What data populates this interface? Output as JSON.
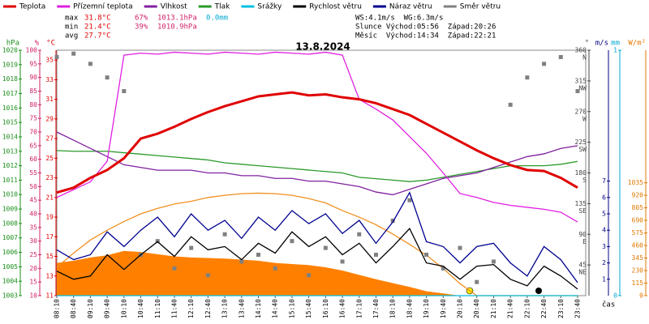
{
  "chart_data": {
    "type": "line",
    "title": "13.8.2024",
    "x": [
      "08:10",
      "08:40",
      "09:10",
      "09:40",
      "10:10",
      "10:40",
      "11:10",
      "11:40",
      "12:10",
      "12:40",
      "13:10",
      "13:40",
      "14:10",
      "14:40",
      "15:10",
      "15:40",
      "16:10",
      "16:40",
      "17:10",
      "17:40",
      "18:10",
      "18:40",
      "19:10",
      "19:40",
      "20:10",
      "20:40",
      "21:10",
      "21:40",
      "22:10",
      "22:40",
      "23:10",
      "23:40"
    ],
    "x_label": "čas",
    "axes": [
      {
        "id": "p",
        "label": "hPa",
        "color": "#1a8f1a",
        "lim": [
          1003,
          1020
        ],
        "ticks": [
          1003,
          1004,
          1005,
          1006,
          1007,
          1008,
          1009,
          1010,
          1011,
          1012,
          1013,
          1014,
          1015,
          1016,
          1017,
          1018,
          1019,
          1020
        ],
        "side": "left"
      },
      {
        "id": "h",
        "label": "%",
        "color": "#d0206a",
        "lim": [
          10,
          100
        ],
        "ticks": [
          10,
          15,
          20,
          25,
          30,
          35,
          40,
          45,
          50,
          55,
          60,
          65,
          70,
          75,
          80,
          85,
          90,
          95,
          100
        ],
        "side": "left"
      },
      {
        "id": "t",
        "label": "°C",
        "color": "#e00000",
        "lim": [
          11,
          36
        ],
        "ticks": [
          11,
          13,
          15,
          17,
          19,
          21,
          23,
          25,
          27,
          29,
          31,
          33,
          35
        ],
        "side": "left"
      },
      {
        "id": "d",
        "label": "°",
        "color": "#444444",
        "lim": [
          0,
          360
        ],
        "ticks": [
          45,
          90,
          135,
          180,
          225,
          270,
          315,
          360
        ],
        "tick_names": [
          "NE",
          "E",
          "SE",
          "S",
          "SW",
          "W",
          "NW",
          "N"
        ],
        "side": "right"
      },
      {
        "id": "w",
        "label": "m/s",
        "color": "#000080",
        "lim": [
          0,
          15
        ],
        "ticks": [
          1,
          2,
          3,
          4,
          5,
          6,
          7
        ],
        "side": "right"
      },
      {
        "id": "r",
        "label": "mm",
        "color": "#00a8d0",
        "lim": [
          0,
          1
        ],
        "ticks": [
          0,
          1
        ],
        "side": "right"
      },
      {
        "id": "s",
        "label": "W/m²",
        "color": "#e07800",
        "lim": [
          0,
          2250
        ],
        "ticks": [
          0,
          115,
          230,
          345,
          460,
          575,
          690,
          805,
          920,
          1035
        ],
        "side": "right"
      }
    ],
    "series": [
      {
        "kind": "area",
        "axis": "s",
        "color": "#ff8000",
        "values": [
          300,
          320,
          350,
          370,
          410,
          400,
          380,
          360,
          350,
          345,
          340,
          330,
          320,
          300,
          290,
          280,
          260,
          230,
          190,
          150,
          115,
          80,
          40,
          20,
          0,
          0,
          0,
          0,
          0,
          0,
          0,
          0
        ]
      },
      {
        "kind": "line",
        "axis": "s",
        "color": "#f09020",
        "values": [
          260,
          390,
          510,
          600,
          680,
          750,
          800,
          840,
          865,
          900,
          920,
          935,
          940,
          935,
          920,
          890,
          850,
          780,
          720,
          650,
          565,
          470,
          370,
          250,
          110,
          0,
          0,
          0,
          0,
          0,
          0,
          0
        ]
      },
      {
        "name": "Směr větru",
        "kind": "points",
        "axis": "d",
        "color": "#808080",
        "values": [
          350,
          355,
          340,
          320,
          300,
          60,
          80,
          40,
          70,
          30,
          90,
          50,
          60,
          40,
          80,
          30,
          70,
          50,
          90,
          60,
          110,
          140,
          60,
          40,
          70,
          20,
          50,
          280,
          320,
          340,
          350,
          300
        ]
      },
      {
        "name": "Srážky",
        "kind": "line",
        "axis": "r",
        "color": "#00c0e0",
        "values": [
          0,
          0,
          0,
          0,
          0,
          0,
          0,
          0,
          0,
          0,
          0,
          0,
          0,
          0,
          0,
          0,
          0,
          0,
          0,
          0,
          0,
          0,
          0,
          0,
          0,
          0,
          0,
          0,
          0,
          0,
          0,
          0
        ]
      },
      {
        "name": "Rychlost větru",
        "kind": "line",
        "axis": "w",
        "color": "#000000",
        "values": [
          1.5,
          1.0,
          1.2,
          2.5,
          1.6,
          2.5,
          3.3,
          2.4,
          3.6,
          2.8,
          3.0,
          2.2,
          3.2,
          2.6,
          3.9,
          3.0,
          3.6,
          2.5,
          3.2,
          2.0,
          3.0,
          4.1,
          2.0,
          1.8,
          1.0,
          1.8,
          1.9,
          1.0,
          0.6,
          1.8,
          1.2,
          0.4
        ]
      },
      {
        "name": "Náraz větru",
        "kind": "line",
        "axis": "w",
        "color": "#000090",
        "values": [
          2.8,
          2.2,
          2.5,
          3.9,
          3.0,
          4.0,
          4.8,
          3.6,
          5.0,
          4.0,
          4.6,
          3.5,
          4.8,
          4.0,
          5.2,
          4.4,
          5.0,
          3.8,
          4.6,
          3.2,
          4.5,
          6.3,
          3.3,
          3.0,
          2.0,
          3.0,
          3.2,
          2.0,
          1.2,
          3.0,
          2.2,
          0.8
        ]
      },
      {
        "name": "Tlak",
        "kind": "line",
        "axis": "p",
        "color": "#2a9a2a",
        "values": [
          1013.05,
          1013.0,
          1013.0,
          1013.0,
          1012.9,
          1012.8,
          1012.7,
          1012.6,
          1012.5,
          1012.4,
          1012.2,
          1012.1,
          1012.0,
          1011.9,
          1011.8,
          1011.7,
          1011.6,
          1011.5,
          1011.2,
          1011.1,
          1011.0,
          1010.9,
          1011.0,
          1011.2,
          1011.4,
          1011.6,
          1011.8,
          1012.0,
          1012.0,
          1012.0,
          1012.1,
          1012.3
        ]
      },
      {
        "name": "Vlhkost",
        "kind": "line",
        "axis": "h",
        "color": "#8020a0",
        "values": [
          70,
          67,
          64,
          61,
          58,
          57,
          56,
          56,
          56,
          55,
          55,
          54,
          54,
          53,
          53,
          52,
          52,
          51,
          50,
          48,
          47,
          49,
          51,
          53,
          54,
          55,
          57,
          59,
          61,
          62,
          64,
          65
        ]
      },
      {
        "name": "Přízemní teplota",
        "kind": "line",
        "axis": "t",
        "color": "#e020e0",
        "values": [
          21,
          21.8,
          22.6,
          24.7,
          35.5,
          35.7,
          35.6,
          35.8,
          35.7,
          35.6,
          35.8,
          35.7,
          35.6,
          35.8,
          35.7,
          35.6,
          35.8,
          35.5,
          31,
          30,
          28.9,
          27.2,
          25.5,
          23.5,
          21.4,
          21,
          20.5,
          20.2,
          20,
          19.8,
          19.5,
          18.5
        ]
      },
      {
        "name": "Teplota",
        "kind": "line",
        "axis": "t",
        "color": "#e00000",
        "width": 3,
        "values": [
          21.5,
          22,
          23,
          23.8,
          25,
          27,
          27.5,
          28.2,
          29,
          29.7,
          30.3,
          30.8,
          31.3,
          31.5,
          31.7,
          31.4,
          31.5,
          31.2,
          31,
          30.6,
          30,
          29.4,
          28.5,
          27.6,
          26.7,
          25.8,
          25,
          24.3,
          23.8,
          23.7,
          23,
          22
        ]
      }
    ],
    "legend_order": [
      9,
      8,
      7,
      6,
      3,
      4,
      5,
      2
    ],
    "stats": [
      {
        "label": "max",
        "t": "31.8°C",
        "h": "67%",
        "p": "1013.1hPa",
        "r": "0.0mm"
      },
      {
        "label": "min",
        "t": "21.4°C",
        "h": "39%",
        "p": "1010.9hPa"
      },
      {
        "label": "avg",
        "t": "27.7°C"
      }
    ],
    "info": [
      "WS:4.1m/s  WG:6.3m/s",
      "Slunce Východ:05:56  Západ:20:26",
      "Měsíc  Východ:14:34  Západ:22:21"
    ]
  }
}
